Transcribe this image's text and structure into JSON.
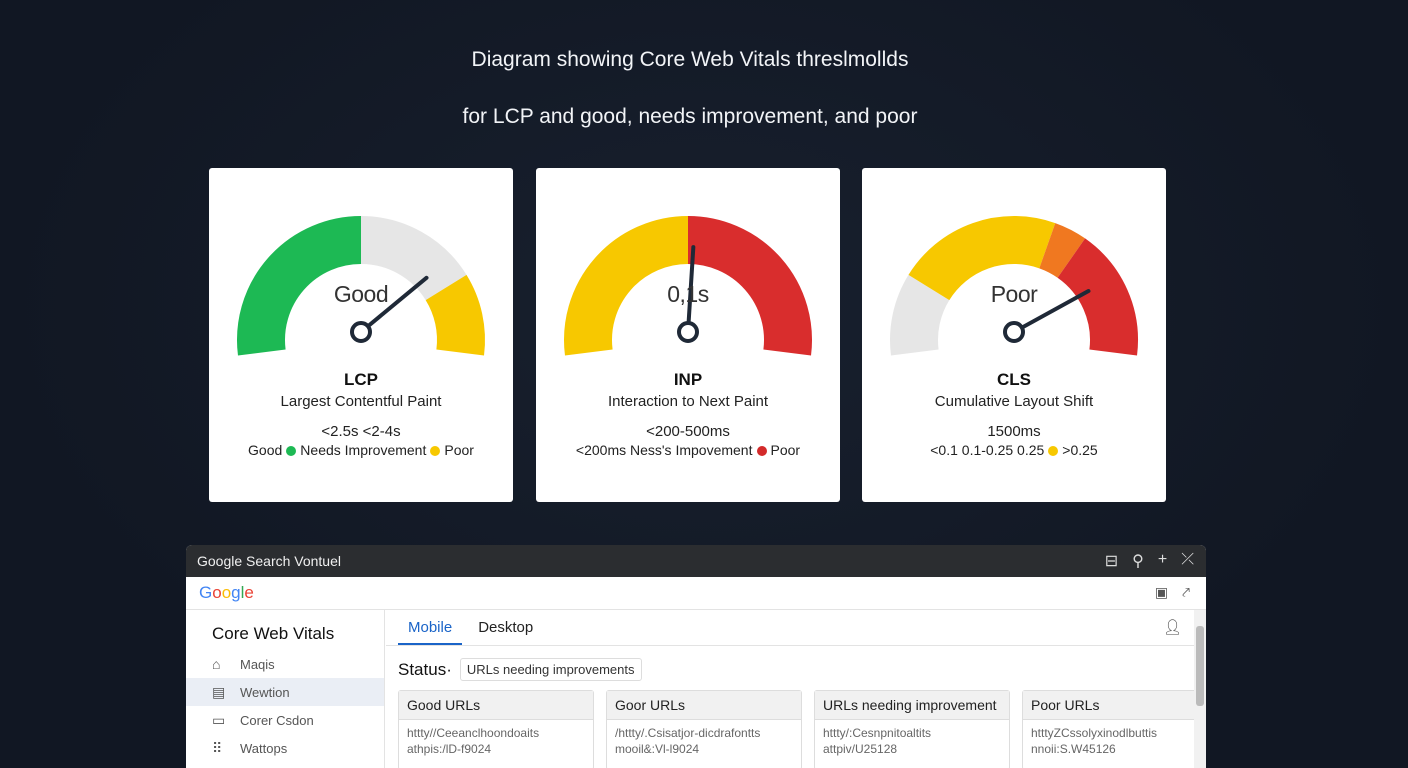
{
  "heading": {
    "line1": "Diagram showing Core Web Vitals threslmollds",
    "line2": "for LCP and good, needs improvement, and poor"
  },
  "cards": [
    {
      "gauge_label": "Good",
      "abbr": "LCP",
      "full": "Largest Contentful Paint",
      "thresholds": "<2.5s <2-4s",
      "legend": [
        {
          "text": "Good",
          "dot": "#1db954"
        },
        {
          "text": "Needs Improvement",
          "dot": "#f7c800"
        },
        {
          "text": "Poor",
          "dot": null
        }
      ],
      "segments": [
        {
          "from": 0,
          "to": 0.5,
          "color": "#1db954"
        },
        {
          "from": 0.5,
          "to": 0.8,
          "color": "#e6e6e6"
        },
        {
          "from": 0.8,
          "to": 1,
          "color": "#f7c800"
        }
      ],
      "needle": 0.78
    },
    {
      "gauge_label": "0,1s",
      "abbr": "INP",
      "full": "Interaction to Next Paint",
      "thresholds": "<200-500ms",
      "legend": [
        {
          "text": "<200ms  Ness's Impovement",
          "dot": "#d32a2a"
        },
        {
          "text": "Poor",
          "dot": null
        }
      ],
      "segments": [
        {
          "from": 0,
          "to": 0.5,
          "color": "#f7c800"
        },
        {
          "from": 0.5,
          "to": 1,
          "color": "#d92d2d"
        }
      ],
      "needle": 0.52
    },
    {
      "gauge_label": "Poor",
      "abbr": "CLS",
      "full": "Cumulative Layout Shift",
      "thresholds": "1500ms",
      "legend": [
        {
          "text": "<0.1   0.1-0.25 0.25",
          "dot": "#f7c800"
        },
        {
          "text": ">0.25",
          "dot": null
        }
      ],
      "segments": [
        {
          "from": 0,
          "to": 0.2,
          "color": "#e6e6e6"
        },
        {
          "from": 0.2,
          "to": 0.6,
          "color": "#f7c800"
        },
        {
          "from": 0.6,
          "to": 0.68,
          "color": "#f07820"
        },
        {
          "from": 0.68,
          "to": 1,
          "color": "#d92d2d"
        }
      ],
      "needle": 0.84
    }
  ],
  "window": {
    "title": "Google Search Vontuel",
    "logo": "Google",
    "sidebar": {
      "title": "Core Web Vitals",
      "items": [
        {
          "icon": "home",
          "label": "Maqis"
        },
        {
          "icon": "page",
          "label": "Wewtion"
        },
        {
          "icon": "monitor",
          "label": "Corer Csdon"
        },
        {
          "icon": "grid",
          "label": "Wattops"
        }
      ]
    },
    "tabs": [
      "Mobile",
      "Desktop"
    ],
    "status_label": "Status·",
    "status_chip": "URLs needing improvements",
    "columns": [
      {
        "header": "Good URLs",
        "lines": [
          "httty//Ceeanclhoondoaits",
          "athpis:/lD-f9024"
        ]
      },
      {
        "header": "Goor URLs",
        "lines": [
          "/httty/.Csisatjor-dicdrafontts",
          "mooil&:Vl-l9024"
        ]
      },
      {
        "header": "URLs needing improvement",
        "lines": [
          "httty/:Cesnpnitoaltits",
          "attpiv/U25128"
        ]
      },
      {
        "header": "Poor URLs",
        "lines": [
          "htttyZCssolyxinodlbuttis",
          "nnoii:S.W45126"
        ]
      }
    ]
  }
}
